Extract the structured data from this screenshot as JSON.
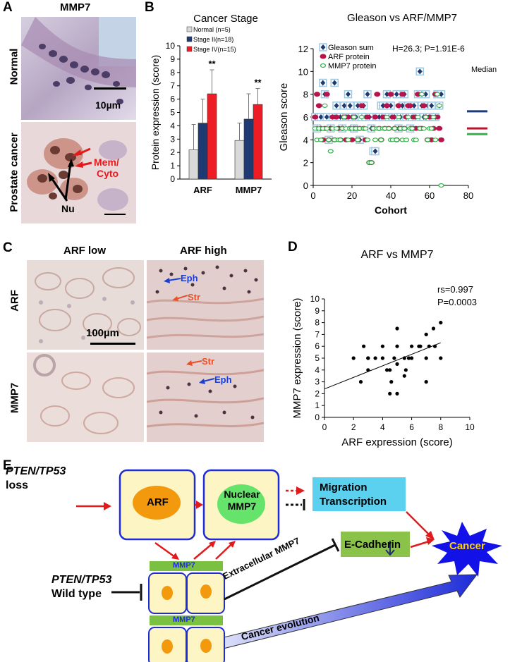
{
  "panels": {
    "A": "A",
    "B": "B",
    "C": "C",
    "D": "D",
    "E": "E"
  },
  "panelA": {
    "header": "MMP7",
    "row_labels": [
      "Normal",
      "Prostate cancer"
    ],
    "scalebar_label": "10µm",
    "annot_mem": "Mem/",
    "annot_cyto": "Cyto",
    "annot_nu": "Nu"
  },
  "panelC": {
    "col_labels": [
      "ARF low",
      "ARF high"
    ],
    "row_labels": [
      "ARF",
      "MMP7"
    ],
    "scalebar_label": "100µm",
    "annots": [
      "Eph",
      "Str",
      "Str",
      "Eph"
    ]
  },
  "chart_data": [
    {
      "type": "bar",
      "title": "Cancer Stage",
      "ylabel": "Protein expression (score)",
      "ylim": [
        0,
        10
      ],
      "yticks": [
        "0",
        "1",
        "2",
        "3",
        "4",
        "5",
        "6",
        "7",
        "8",
        "9",
        "10"
      ],
      "categories": [
        "ARF",
        "MMP7"
      ],
      "series": [
        {
          "name": "Normal (n=5)",
          "values": [
            2.2,
            2.9
          ],
          "errors": [
            1.9,
            1.3
          ],
          "color": "#d9d9d9"
        },
        {
          "name": "Stage II(n=18)",
          "values": [
            4.2,
            4.5
          ],
          "errors": [
            1.8,
            1.9
          ],
          "color": "#1f3a73"
        },
        {
          "name": "Stage IV(n=15)",
          "values": [
            6.4,
            5.6
          ],
          "errors": [
            1.8,
            1.2
          ],
          "color": "#ee1c24"
        }
      ],
      "annotations": [
        "**",
        "**"
      ],
      "legend": "top-left",
      "grid": false
    },
    {
      "type": "scatter",
      "title": "Gleason vs ARF/MMP7",
      "xlabel": "Cohort",
      "ylabel": "Gleason score",
      "xlim": [
        0,
        80
      ],
      "ylim": [
        0,
        12
      ],
      "xticks": [
        "0",
        "20",
        "40",
        "60",
        "80"
      ],
      "yticks": [
        "0",
        "2",
        "4",
        "6",
        "8",
        "10",
        "12"
      ],
      "stat_text": "H=26.3; P=1.91E-6",
      "median_label": "Median",
      "medians": [
        {
          "series": "Gleason sum",
          "value": 6.5,
          "color": "#1f3a73"
        },
        {
          "series": "ARF protein",
          "value": 5.0,
          "color": "#c0102a"
        },
        {
          "series": "MMP7 protein",
          "value": 4.5,
          "color": "#33b24a"
        }
      ],
      "legend": "top-left",
      "series": [
        {
          "name": "Gleason sum",
          "marker": "diamond",
          "color": "#1f3a73",
          "x": [
            1,
            2,
            3,
            4,
            5,
            6,
            7,
            8,
            9,
            10,
            11,
            12,
            13,
            14,
            15,
            16,
            17,
            18,
            19,
            20,
            21,
            22,
            23,
            24,
            25,
            26,
            27,
            28,
            29,
            30,
            31,
            32,
            33,
            34,
            35,
            36,
            37,
            38,
            39,
            40,
            41,
            42,
            43,
            44,
            45,
            46,
            47,
            48,
            49,
            50,
            51,
            52,
            53,
            54,
            55,
            56,
            57,
            58,
            59,
            60,
            61,
            62,
            63,
            64,
            65,
            66
          ],
          "y": [
            6,
            5,
            6,
            6,
            9,
            8,
            6,
            4,
            5,
            6,
            9,
            7,
            6,
            6,
            5,
            7,
            6,
            8,
            7,
            6,
            5,
            6,
            7,
            4,
            6,
            7,
            6,
            8,
            6,
            5,
            3,
            3,
            6,
            6,
            7,
            7,
            6,
            8,
            6,
            7,
            6,
            6,
            8,
            5,
            6,
            7,
            8,
            6,
            7,
            5,
            6,
            7,
            6,
            8,
            10,
            7,
            6,
            8,
            7,
            6,
            7,
            6,
            6,
            8,
            7,
            8
          ]
        },
        {
          "name": "ARF protein",
          "marker": "ellipse",
          "color": "#b8134a",
          "x": [
            1,
            2,
            3,
            4,
            5,
            6,
            7,
            8,
            9,
            10,
            11,
            12,
            13,
            14,
            15,
            16,
            17,
            18,
            19,
            20,
            21,
            22,
            23,
            24,
            25,
            26,
            27,
            28,
            29,
            30,
            31,
            32,
            33,
            34,
            35,
            36,
            37,
            38,
            39,
            40,
            41,
            42,
            43,
            44,
            45,
            46,
            47,
            48,
            49,
            50,
            51,
            52,
            53,
            54,
            55,
            56,
            57,
            58,
            59,
            60,
            61,
            62,
            63,
            64,
            65,
            66
          ],
          "y": [
            6,
            8,
            7,
            5,
            4,
            5,
            8,
            4,
            5,
            6,
            4,
            6,
            5,
            4,
            5,
            6,
            4,
            6,
            5,
            4,
            6,
            5,
            4,
            5,
            7,
            5,
            4,
            6,
            2,
            2,
            5,
            6,
            8,
            5,
            4,
            6,
            5,
            7,
            5,
            8,
            6,
            5,
            4,
            7,
            5,
            8,
            5,
            6,
            7,
            7,
            5,
            6,
            5,
            8,
            5,
            5,
            7,
            6,
            4,
            6,
            4,
            5,
            8,
            6,
            5,
            4
          ]
        },
        {
          "name": "MMP7 protein",
          "marker": "dot",
          "color": "#33b24a",
          "x": [
            1,
            2,
            3,
            4,
            5,
            6,
            7,
            8,
            9,
            10,
            11,
            12,
            13,
            14,
            15,
            16,
            17,
            18,
            19,
            20,
            21,
            22,
            23,
            24,
            25,
            26,
            27,
            28,
            29,
            30,
            31,
            32,
            33,
            34,
            35,
            36,
            37,
            38,
            39,
            40,
            41,
            42,
            43,
            44,
            45,
            46,
            47,
            48,
            49,
            50,
            51,
            52,
            53,
            54,
            55,
            56,
            57,
            58,
            59,
            60,
            61,
            62,
            63,
            64,
            65,
            66
          ],
          "y": [
            5,
            4,
            5,
            4,
            5,
            7,
            5,
            4,
            3,
            5,
            4,
            5,
            4,
            4,
            5,
            6,
            5,
            4,
            5,
            5,
            6,
            5,
            4,
            5,
            6,
            5,
            5,
            4,
            2,
            2,
            5,
            4,
            5,
            5,
            4,
            5,
            5,
            6,
            5,
            4,
            4,
            5,
            4,
            6,
            5,
            4,
            5,
            4,
            6,
            5,
            5,
            4,
            4,
            6,
            5,
            8,
            5,
            6,
            4,
            5,
            5,
            6,
            4,
            8,
            7,
            0
          ]
        }
      ]
    },
    {
      "type": "scatter",
      "title": "ARF vs MMP7",
      "xlabel": "ARF expression (score)",
      "ylabel": "MMP7 expression (score)",
      "xlim": [
        0,
        10
      ],
      "ylim": [
        0,
        10
      ],
      "xticks": [
        "0",
        "2",
        "4",
        "6",
        "8",
        "10"
      ],
      "yticks": [
        "0",
        "1",
        "2",
        "3",
        "4",
        "5",
        "6",
        "7",
        "8",
        "9",
        "10"
      ],
      "stat_r": "rs=0.997",
      "stat_p": "P=0.0003",
      "trendline": {
        "x": [
          0,
          8
        ],
        "y": [
          2.4,
          6.3
        ]
      },
      "points": {
        "x": [
          2,
          2.5,
          2.7,
          3,
          3,
          3,
          3.5,
          4,
          4,
          4.3,
          4.5,
          4.5,
          4.6,
          4.8,
          5,
          5,
          5,
          5,
          5.5,
          5.5,
          5.6,
          5.8,
          6,
          6,
          6.5,
          6.6,
          7,
          7,
          7,
          7.2,
          7.5,
          7.6,
          8,
          8
        ],
        "y": [
          5,
          3,
          6,
          5,
          4,
          5,
          5,
          6,
          5,
          4,
          2,
          4,
          3,
          5,
          2,
          6,
          7.5,
          4.5,
          5,
          3.5,
          4,
          5,
          5,
          6,
          6,
          6,
          5,
          7,
          3,
          6,
          7.5,
          6,
          8,
          5
        ]
      }
    }
  ],
  "panelE": {
    "pten_loss_1": "PTEN/TP53",
    "pten_loss_2": "loss",
    "pten_wt_1": "PTEN/TP53",
    "pten_wt_2": "Wild type",
    "arf": "ARF",
    "nuclear_1": "Nuclear",
    "nuclear_2": "MMP7",
    "migration_1": "Migration",
    "migration_2": "Transcription",
    "cancer": "Cancer",
    "ecad": "E-Cadherin",
    "mmp7_top": "MMP7",
    "mmp7_bottom": "MMP7",
    "extracellular": "Extracellular MMP7",
    "evolution": "Cancer evolution"
  }
}
